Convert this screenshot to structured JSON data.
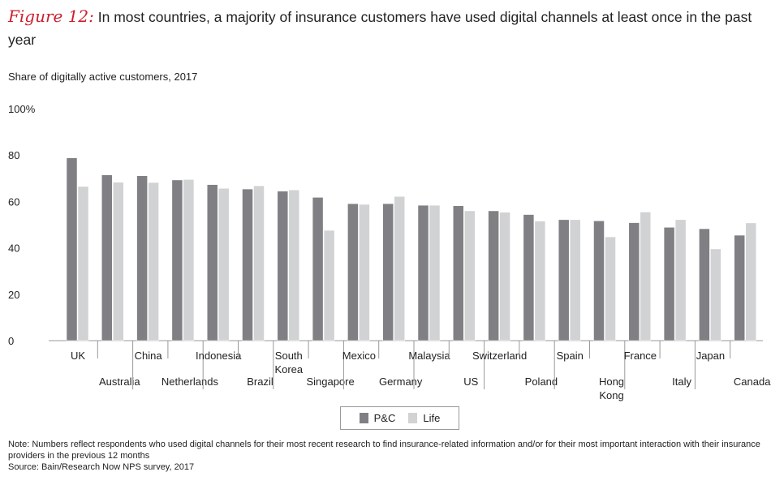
{
  "title": {
    "figure_label": "Figure 12:",
    "text": " In most countries, a majority of insurance customers have used digital channels at least once in the past year"
  },
  "chart_data": {
    "type": "bar",
    "ylabel": "Share of digitally active customers, 2017",
    "ylim": [
      0,
      100
    ],
    "yticks": [
      "0",
      "20",
      "40",
      "60",
      "80",
      "100%"
    ],
    "grid": false,
    "legend_position": "bottom",
    "categories": [
      "UK",
      "Australia",
      "China",
      "Netherlands",
      "Indonesia",
      "Brazil",
      "South Korea",
      "Singapore",
      "Mexico",
      "Germany",
      "Malaysia",
      "US",
      "Switzerland",
      "Poland",
      "Spain",
      "Hong Kong",
      "France",
      "Italy",
      "Japan",
      "Canada"
    ],
    "series": [
      {
        "name": "P&C",
        "color": "#808084",
        "values": [
          78.7,
          71.4,
          71.0,
          69.2,
          67.2,
          65.3,
          64.4,
          61.7,
          59.0,
          59.0,
          58.3,
          58.1,
          55.9,
          54.3,
          52.1,
          51.6,
          50.8,
          48.8,
          48.2,
          45.4
        ]
      },
      {
        "name": "Life",
        "color": "#d1d2d4",
        "values": [
          66.4,
          68.2,
          68.1,
          69.4,
          65.6,
          66.7,
          64.9,
          47.5,
          58.7,
          62.1,
          58.3,
          55.9,
          55.3,
          51.5,
          52.1,
          44.7,
          55.4,
          52.1,
          39.5,
          50.7
        ]
      }
    ]
  },
  "note": {
    "line1": "Note: Numbers reflect respondents who used digital channels for their most recent research to find insurance-related information and/or for their most important interaction with their insurance providers in the previous 12 months",
    "source": "Source: Bain/Research Now NPS survey, 2017"
  }
}
